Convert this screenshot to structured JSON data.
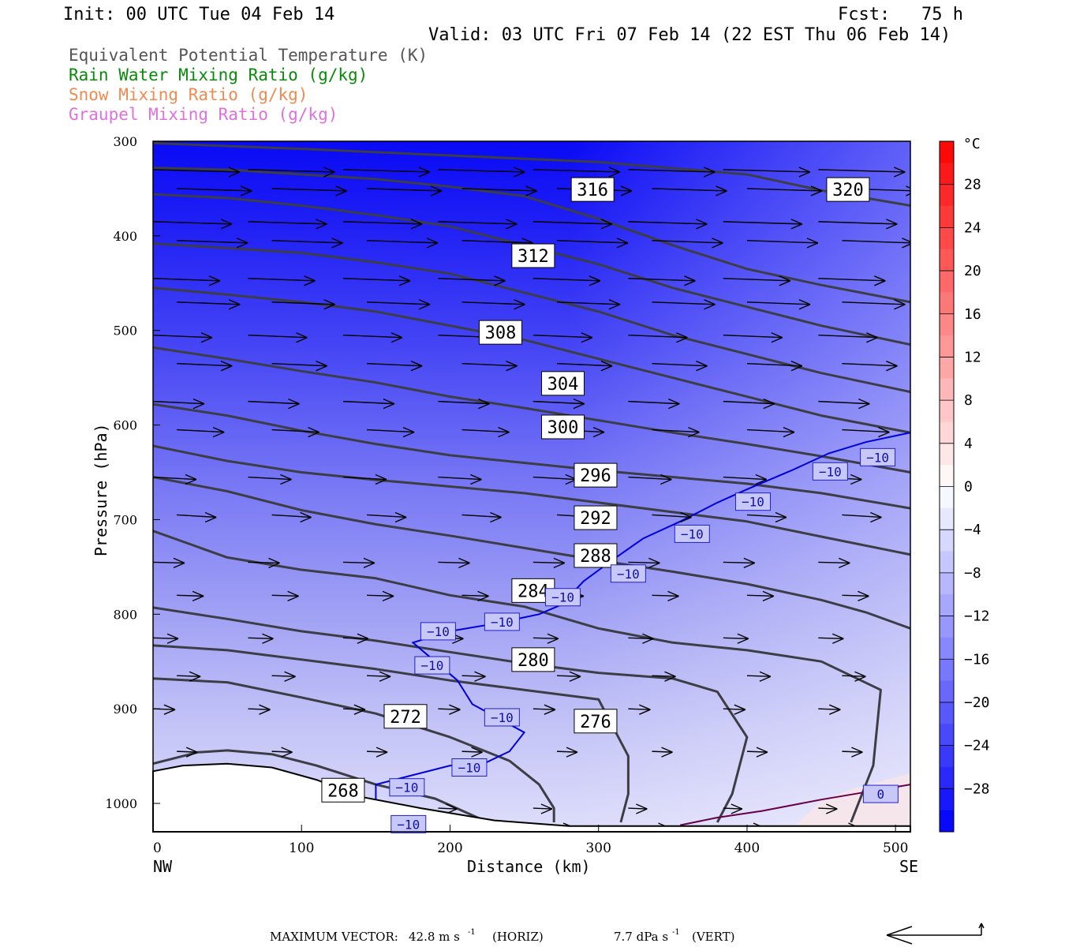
{
  "header": {
    "init": "Init: 00 UTC Tue 04 Feb 14",
    "fcst": "Fcst:   75 h",
    "valid": "Valid: 03 UTC Fri 07 Feb 14 (22 EST Thu 06 Feb 14)"
  },
  "legend": [
    {
      "text": "Equivalent Potential Temperature (K)",
      "color": "#555555"
    },
    {
      "text": "Rain Water Mixing Ratio (g/kg)",
      "color": "#0a8a0a"
    },
    {
      "text": "Snow Mixing Ratio (g/kg)",
      "color": "#f08a50"
    },
    {
      "text": "Graupel Mixing Ratio (g/kg)",
      "color": "#e070e0"
    }
  ],
  "footer": {
    "max_vector_label": "MAXIMUM VECTOR:",
    "horiz_value": "42.8 m s",
    "horiz_exp": "-1",
    "horiz_tag": "(HORIZ)",
    "vert_value": "7.7 dPa s",
    "vert_exp": "-1",
    "vert_tag": "(VERT)"
  },
  "chart_data": {
    "type": "contour",
    "ylabel": "Pressure (hPa)",
    "xlabel": "Distance (km)",
    "x_range": [
      0,
      510
    ],
    "y_range": [
      300,
      1030
    ],
    "y_scale": "pressure-inverted",
    "x_ticks": [
      0,
      100,
      200,
      300,
      400,
      500
    ],
    "y_ticks": [
      300,
      400,
      500,
      600,
      700,
      800,
      900,
      1000
    ],
    "x_end_labels": {
      "left": "NW",
      "right": "SE"
    },
    "colorbar": {
      "unit": "°C",
      "ticks": [
        28,
        24,
        20,
        16,
        12,
        8,
        4,
        0,
        -4,
        -8,
        -12,
        -16,
        -20,
        -24,
        -28
      ],
      "range": [
        -32,
        32
      ],
      "cold_color": "#0000ff",
      "warm_color": "#ff0000"
    },
    "theta_e_contours": [
      {
        "value": 268,
        "points": [
          [
            0,
            958
          ],
          [
            30,
            946
          ],
          [
            50,
            944
          ],
          [
            80,
            948
          ],
          [
            110,
            960
          ],
          [
            150,
            980
          ],
          [
            190,
            995
          ],
          [
            220,
            1016
          ]
        ]
      },
      {
        "value": 272,
        "points": [
          [
            0,
            868
          ],
          [
            50,
            872
          ],
          [
            100,
            888
          ],
          [
            150,
            905
          ],
          [
            200,
            930
          ],
          [
            240,
            955
          ],
          [
            260,
            980
          ],
          [
            270,
            1005
          ],
          [
            270,
            1020
          ]
        ]
      },
      {
        "value": 276,
        "points": [
          [
            0,
            833
          ],
          [
            50,
            838
          ],
          [
            100,
            848
          ],
          [
            150,
            858
          ],
          [
            200,
            870
          ],
          [
            250,
            880
          ],
          [
            300,
            890
          ],
          [
            320,
            950
          ],
          [
            320,
            990
          ],
          [
            315,
            1020
          ]
        ]
      },
      {
        "value": 280,
        "points": [
          [
            0,
            793
          ],
          [
            50,
            805
          ],
          [
            100,
            818
          ],
          [
            150,
            828
          ],
          [
            200,
            840
          ],
          [
            250,
            852
          ],
          [
            300,
            862
          ],
          [
            350,
            868
          ],
          [
            380,
            882
          ],
          [
            400,
            930
          ],
          [
            390,
            990
          ],
          [
            380,
            1020
          ]
        ]
      },
      {
        "value": 284,
        "points": [
          [
            0,
            712
          ],
          [
            50,
            740
          ],
          [
            100,
            753
          ],
          [
            150,
            762
          ],
          [
            200,
            780
          ],
          [
            250,
            792
          ],
          [
            300,
            815
          ],
          [
            350,
            830
          ],
          [
            400,
            838
          ],
          [
            450,
            850
          ],
          [
            490,
            880
          ],
          [
            485,
            960
          ],
          [
            470,
            1020
          ]
        ]
      },
      {
        "value": 288,
        "points": [
          [
            0,
            655
          ],
          [
            50,
            670
          ],
          [
            100,
            690
          ],
          [
            150,
            705
          ],
          [
            200,
            717
          ],
          [
            250,
            730
          ],
          [
            300,
            743
          ],
          [
            350,
            755
          ],
          [
            400,
            768
          ],
          [
            450,
            785
          ],
          [
            480,
            798
          ],
          [
            510,
            815
          ]
        ]
      },
      {
        "value": 292,
        "points": [
          [
            0,
            622
          ],
          [
            50,
            638
          ],
          [
            100,
            650
          ],
          [
            150,
            658
          ],
          [
            200,
            665
          ],
          [
            250,
            672
          ],
          [
            300,
            682
          ],
          [
            350,
            692
          ],
          [
            400,
            702
          ],
          [
            450,
            718
          ],
          [
            510,
            737
          ]
        ]
      },
      {
        "value": 296,
        "points": [
          [
            0,
            578
          ],
          [
            50,
            590
          ],
          [
            100,
            606
          ],
          [
            150,
            620
          ],
          [
            200,
            632
          ],
          [
            250,
            640
          ],
          [
            300,
            648
          ],
          [
            350,
            655
          ],
          [
            400,
            662
          ],
          [
            450,
            672
          ],
          [
            510,
            688
          ]
        ]
      },
      {
        "value": 300,
        "points": [
          [
            0,
            518
          ],
          [
            50,
            530
          ],
          [
            100,
            543
          ],
          [
            150,
            555
          ],
          [
            200,
            570
          ],
          [
            250,
            582
          ],
          [
            300,
            595
          ],
          [
            350,
            608
          ],
          [
            400,
            620
          ],
          [
            450,
            633
          ],
          [
            510,
            650
          ]
        ]
      },
      {
        "value": 304,
        "points": [
          [
            0,
            455
          ],
          [
            50,
            462
          ],
          [
            100,
            470
          ],
          [
            150,
            480
          ],
          [
            200,
            495
          ],
          [
            250,
            510
          ],
          [
            300,
            530
          ],
          [
            350,
            550
          ],
          [
            400,
            570
          ],
          [
            450,
            590
          ],
          [
            510,
            608
          ]
        ]
      },
      {
        "value": 308,
        "points": [
          [
            0,
            408
          ],
          [
            50,
            413
          ],
          [
            100,
            418
          ],
          [
            150,
            428
          ],
          [
            200,
            440
          ],
          [
            250,
            460
          ],
          [
            300,
            480
          ],
          [
            350,
            505
          ],
          [
            400,
            525
          ],
          [
            450,
            545
          ],
          [
            510,
            565
          ]
        ]
      },
      {
        "value": 312,
        "points": [
          [
            0,
            356
          ],
          [
            50,
            360
          ],
          [
            100,
            368
          ],
          [
            150,
            378
          ],
          [
            200,
            390
          ],
          [
            250,
            410
          ],
          [
            300,
            430
          ],
          [
            350,
            455
          ],
          [
            400,
            475
          ],
          [
            450,
            495
          ],
          [
            510,
            515
          ]
        ]
      },
      {
        "value": 316,
        "points": [
          [
            0,
            328
          ],
          [
            50,
            330
          ],
          [
            100,
            335
          ],
          [
            150,
            340
          ],
          [
            200,
            348
          ],
          [
            250,
            358
          ],
          [
            300,
            382
          ],
          [
            350,
            410
          ],
          [
            400,
            435
          ],
          [
            450,
            452
          ],
          [
            510,
            470
          ]
        ]
      },
      {
        "value": 320,
        "points": [
          [
            0,
            302
          ],
          [
            100,
            308
          ],
          [
            200,
            315
          ],
          [
            300,
            322
          ],
          [
            400,
            335
          ],
          [
            450,
            352
          ],
          [
            510,
            368
          ]
        ]
      }
    ],
    "theta_e_labels": [
      {
        "text": "268",
        "x": 128,
        "y": 986
      },
      {
        "text": "272",
        "x": 170,
        "y": 908
      },
      {
        "text": "276",
        "x": 298,
        "y": 913
      },
      {
        "text": "280",
        "x": 256,
        "y": 848
      },
      {
        "text": "284",
        "x": 256,
        "y": 775
      },
      {
        "text": "288",
        "x": 298,
        "y": 738
      },
      {
        "text": "292",
        "x": 298,
        "y": 698
      },
      {
        "text": "296",
        "x": 298,
        "y": 653
      },
      {
        "text": "300",
        "x": 276,
        "y": 602
      },
      {
        "text": "304",
        "x": 276,
        "y": 556
      },
      {
        "text": "308",
        "x": 234,
        "y": 502
      },
      {
        "text": "312",
        "x": 256,
        "y": 421
      },
      {
        "text": "316",
        "x": 296,
        "y": 351
      },
      {
        "text": "320",
        "x": 468,
        "y": 351
      }
    ],
    "temperature_isotherms": [
      {
        "value": -10,
        "color": "#0000dd",
        "points": [
          [
            172,
            1022
          ],
          [
            150,
            1005
          ],
          [
            150,
            980
          ],
          [
            200,
            960
          ],
          [
            220,
            960
          ],
          [
            240,
            945
          ],
          [
            250,
            925
          ],
          [
            215,
            895
          ],
          [
            205,
            870
          ],
          [
            190,
            850
          ],
          [
            175,
            830
          ],
          [
            200,
            818
          ],
          [
            230,
            810
          ],
          [
            260,
            800
          ],
          [
            275,
            790
          ],
          [
            290,
            765
          ],
          [
            310,
            742
          ],
          [
            330,
            720
          ],
          [
            355,
            702
          ],
          [
            380,
            682
          ],
          [
            400,
            668
          ],
          [
            430,
            648
          ],
          [
            455,
            630
          ],
          [
            480,
            618
          ],
          [
            510,
            608
          ]
        ]
      },
      {
        "value": 0,
        "color": "#66004a",
        "points": [
          [
            355,
            1023
          ],
          [
            380,
            1015
          ],
          [
            410,
            1008
          ],
          [
            450,
            996
          ],
          [
            480,
            988
          ],
          [
            510,
            980
          ]
        ]
      }
    ],
    "isotherm_labels": [
      {
        "text": "-10",
        "x": 172,
        "y": 1022
      },
      {
        "text": "-10",
        "x": 171,
        "y": 983
      },
      {
        "text": "-10",
        "x": 213,
        "y": 962
      },
      {
        "text": "-10",
        "x": 235,
        "y": 909
      },
      {
        "text": "-10",
        "x": 188,
        "y": 854
      },
      {
        "text": "-10",
        "x": 192,
        "y": 818
      },
      {
        "text": "-10",
        "x": 235,
        "y": 808
      },
      {
        "text": "-10",
        "x": 276,
        "y": 782
      },
      {
        "text": "-10",
        "x": 320,
        "y": 757
      },
      {
        "text": "-10",
        "x": 363,
        "y": 715
      },
      {
        "text": "-10",
        "x": 404,
        "y": 681
      },
      {
        "text": "-10",
        "x": 456,
        "y": 649
      },
      {
        "text": "-10",
        "x": 488,
        "y": 634
      },
      {
        "text": "0",
        "x": 490,
        "y": 990
      }
    ]
  }
}
